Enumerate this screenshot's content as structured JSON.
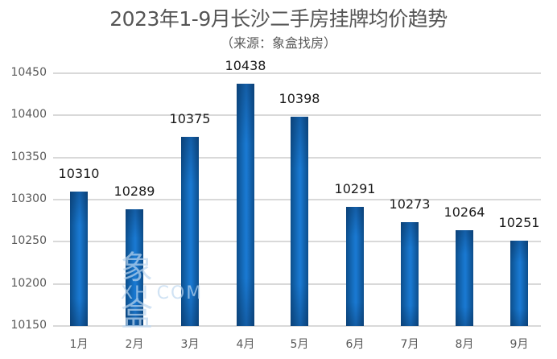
{
  "chart_data": {
    "type": "bar",
    "title": "2023年1-9月长沙二手房挂牌均价趋势",
    "subtitle": "（来源：象盒找房）",
    "categories": [
      "1月",
      "2月",
      "3月",
      "4月",
      "5月",
      "6月",
      "7月",
      "8月",
      "9月"
    ],
    "values": [
      10310,
      10289,
      10375,
      10438,
      10398,
      10291,
      10273,
      10264,
      10251
    ],
    "value_labels": [
      "10310",
      "10289",
      "10375",
      "10438",
      "10398",
      "10291",
      "10273",
      "10264",
      "10251"
    ],
    "xlabel": "",
    "ylabel": "",
    "ylim": [
      10150,
      10450
    ],
    "yticks": [
      "10450",
      "10400",
      "10350",
      "10300",
      "10250",
      "10200",
      "10150"
    ],
    "grid": true,
    "legend": null,
    "bar_color": "#1670c2",
    "watermark": {
      "cn": "象盒",
      "en": "XH COM"
    }
  }
}
